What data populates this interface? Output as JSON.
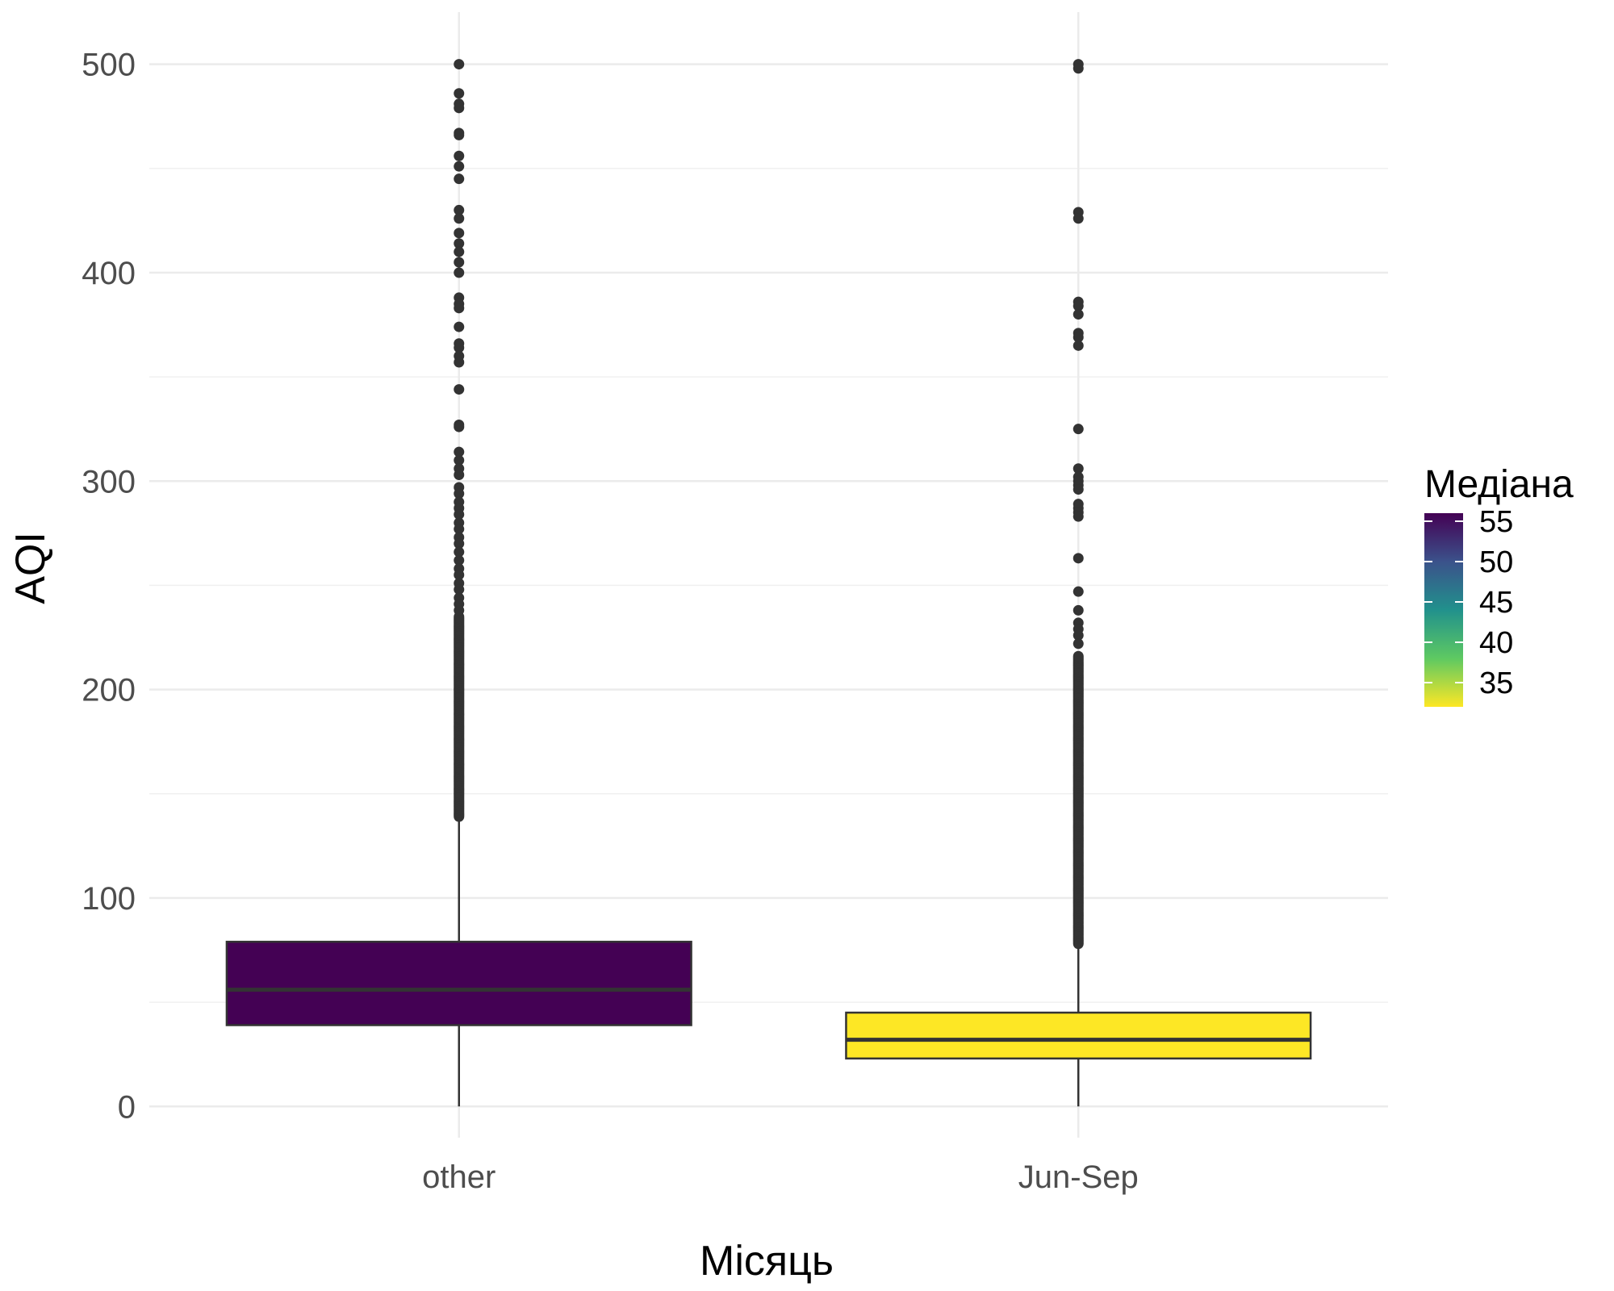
{
  "chart_data": {
    "type": "box",
    "xlabel": "Місяць",
    "ylabel": "AQI",
    "ylim": [
      -15,
      525
    ],
    "yticks": [
      0,
      100,
      200,
      300,
      400,
      500
    ],
    "grid": true,
    "categories": [
      "other",
      "Jun-Sep"
    ],
    "boxes": [
      {
        "category": "other",
        "q1": 39,
        "median": 56,
        "q3": 79,
        "whisker_low": 0,
        "whisker_high": 139,
        "fill": "#440154",
        "outlier_band": [
          139,
          235
        ],
        "outliers": [
          500,
          486,
          481,
          479,
          467,
          466,
          456,
          451,
          445,
          430,
          426,
          419,
          414,
          410,
          405,
          400,
          388,
          385,
          383,
          374,
          366,
          364,
          360,
          357,
          344,
          327,
          326,
          314,
          310,
          306,
          303,
          297,
          294,
          290,
          287,
          284,
          280,
          277,
          273,
          270,
          266,
          262,
          258,
          255,
          251,
          248,
          244,
          241,
          238
        ]
      },
      {
        "category": "Jun-Sep",
        "q1": 23,
        "median": 32,
        "q3": 45,
        "whisker_low": 0,
        "whisker_high": 78,
        "fill": "#fde725",
        "outlier_band": [
          78,
          216
        ],
        "outliers": [
          500,
          498,
          429,
          426,
          386,
          384,
          380,
          371,
          369,
          365,
          325,
          306,
          302,
          300,
          298,
          296,
          289,
          287,
          285,
          283,
          263,
          247,
          238,
          232,
          229,
          226,
          222
        ]
      }
    ],
    "legend": {
      "title": "Медіана",
      "position": "right",
      "min": 32,
      "max": 56,
      "ticks": [
        "55",
        "50",
        "45",
        "40",
        "35"
      ],
      "tick_values": [
        55,
        50,
        45,
        40,
        35
      ],
      "colors": [
        "#fde725",
        "#5ec962",
        "#21918c",
        "#3b528b",
        "#440154"
      ]
    }
  }
}
